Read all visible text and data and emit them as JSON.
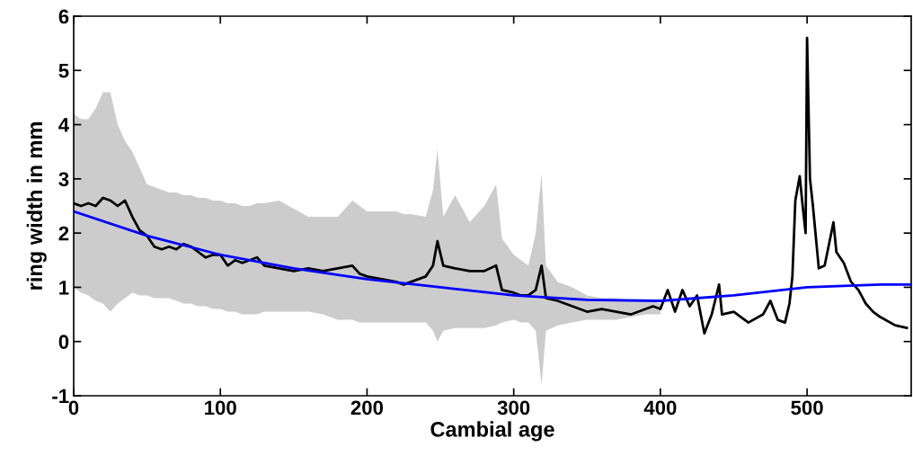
{
  "chart_data": {
    "type": "line",
    "xlabel": "Cambial age",
    "ylabel": "ring width in mm",
    "xlim": [
      0,
      571
    ],
    "xticks": [
      0,
      100,
      200,
      300,
      400,
      500
    ],
    "ylim": [
      -1,
      6
    ],
    "yticks": [
      {
        "value": -1,
        "label": "-1"
      },
      0,
      1,
      2,
      3,
      4,
      5,
      6
    ],
    "marker": "none",
    "line_style": "solid",
    "series": [
      {
        "color": "#000000",
        "x": [
          0,
          5,
          10,
          15,
          20,
          25,
          30,
          35,
          40,
          45,
          50,
          55,
          60,
          65,
          70,
          75,
          80,
          85,
          90,
          95,
          100,
          105,
          110,
          115,
          120,
          125,
          130,
          140,
          150,
          160,
          170,
          180,
          190,
          195,
          200,
          210,
          220,
          225,
          230,
          240,
          245,
          248,
          252,
          260,
          270,
          280,
          288,
          292,
          300,
          305,
          310,
          315,
          319,
          322,
          330,
          340,
          350,
          360,
          370,
          380,
          390,
          395,
          400,
          405,
          410,
          415,
          420,
          425,
          430,
          435,
          440,
          442,
          450,
          460,
          470,
          475,
          480,
          485,
          488,
          490,
          492,
          495,
          497,
          499,
          500,
          502,
          504,
          508,
          512,
          518,
          520,
          525,
          530,
          535,
          540,
          545,
          550,
          560,
          568
        ],
        "values": [
          2.55,
          2.5,
          2.55,
          2.5,
          2.65,
          2.6,
          2.5,
          2.6,
          2.3,
          2.05,
          1.95,
          1.75,
          1.7,
          1.75,
          1.7,
          1.8,
          1.75,
          1.65,
          1.55,
          1.6,
          1.6,
          1.4,
          1.5,
          1.45,
          1.5,
          1.55,
          1.4,
          1.35,
          1.3,
          1.35,
          1.3,
          1.35,
          1.4,
          1.25,
          1.2,
          1.15,
          1.1,
          1.05,
          1.1,
          1.2,
          1.4,
          1.85,
          1.4,
          1.35,
          1.3,
          1.3,
          1.4,
          0.95,
          0.9,
          0.85,
          0.85,
          0.95,
          1.4,
          0.8,
          0.75,
          0.65,
          0.55,
          0.6,
          0.55,
          0.5,
          0.6,
          0.65,
          0.6,
          0.95,
          0.55,
          0.95,
          0.65,
          0.85,
          0.15,
          0.5,
          1.05,
          0.5,
          0.55,
          0.35,
          0.5,
          0.75,
          0.4,
          0.35,
          0.7,
          1.2,
          2.6,
          3.05,
          2.5,
          2.0,
          5.6,
          3.0,
          2.5,
          1.35,
          1.4,
          2.2,
          1.65,
          1.45,
          1.1,
          0.95,
          0.7,
          0.55,
          0.45,
          0.3,
          0.25
        ],
        "lower": [
          1.0,
          0.9,
          0.85,
          0.75,
          0.7,
          0.55,
          0.7,
          0.8,
          0.9,
          0.85,
          0.85,
          0.8,
          0.8,
          0.8,
          0.75,
          0.7,
          0.7,
          0.65,
          0.65,
          0.6,
          0.6,
          0.55,
          0.55,
          0.5,
          0.5,
          0.5,
          0.55,
          0.55,
          0.55,
          0.55,
          0.5,
          0.4,
          0.4,
          0.35,
          0.35,
          0.35,
          0.35,
          0.35,
          0.35,
          0.35,
          0.2,
          0.0,
          0.2,
          0.25,
          0.25,
          0.25,
          0.3,
          0.35,
          0.4,
          0.35,
          0.35,
          0.2,
          -0.8,
          0.2,
          0.3,
          0.35,
          0.4,
          0.4,
          0.4,
          0.45,
          0.5,
          0.5,
          0.5,
          null,
          null,
          null,
          null,
          null,
          null,
          null,
          null,
          null,
          null,
          null,
          null,
          null,
          null,
          null,
          null,
          null,
          null,
          null,
          null,
          null,
          null,
          null,
          null,
          null,
          null,
          null,
          null,
          null,
          null,
          null,
          null,
          null,
          null,
          null,
          null
        ],
        "upper": [
          4.2,
          4.1,
          4.1,
          4.3,
          4.6,
          4.6,
          4.0,
          3.7,
          3.5,
          3.2,
          2.9,
          2.85,
          2.8,
          2.75,
          2.75,
          2.7,
          2.7,
          2.65,
          2.65,
          2.6,
          2.6,
          2.55,
          2.55,
          2.5,
          2.5,
          2.55,
          2.55,
          2.6,
          2.45,
          2.3,
          2.3,
          2.3,
          2.6,
          2.5,
          2.4,
          2.4,
          2.4,
          2.35,
          2.35,
          2.3,
          2.8,
          3.55,
          2.3,
          2.7,
          2.2,
          2.5,
          2.9,
          1.9,
          1.6,
          1.5,
          1.4,
          2.0,
          3.1,
          1.4,
          1.1,
          1.0,
          0.85,
          0.8,
          0.8,
          0.75,
          0.75,
          0.75,
          0.7,
          null,
          null,
          null,
          null,
          null,
          null,
          null,
          null,
          null,
          null,
          null,
          null,
          null,
          null,
          null,
          null,
          null,
          null,
          null,
          null,
          null,
          null,
          null,
          null,
          null,
          null,
          null,
          null,
          null,
          null,
          null,
          null,
          null,
          null,
          null,
          null
        ]
      },
      {
        "color": "#0000ff",
        "x": [
          0,
          50,
          100,
          150,
          200,
          250,
          300,
          350,
          400,
          450,
          500,
          550,
          571
        ],
        "values": [
          2.4,
          1.95,
          1.6,
          1.35,
          1.15,
          1.0,
          0.85,
          0.77,
          0.75,
          0.85,
          1.0,
          1.05,
          1.05
        ]
      }
    ]
  }
}
